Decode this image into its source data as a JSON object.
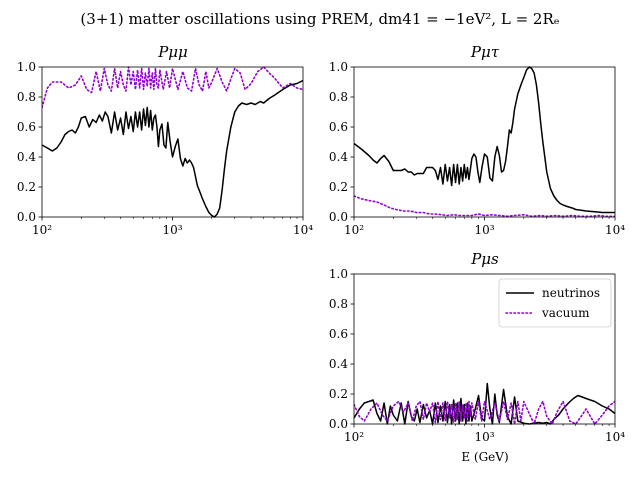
{
  "figure": {
    "title": "(3+1) matter oscillations using PREM, dm41 = −1eV², L = 2Rₑ"
  },
  "chart_data": [
    {
      "type": "line",
      "title": "Pμμ",
      "xlabel": "",
      "ylabel": "",
      "xscale": "log",
      "xlim": [
        100,
        10000
      ],
      "ylim": [
        0,
        1
      ],
      "xticks": [
        "10²",
        "10³",
        "10⁴"
      ],
      "yticks": [
        "0.0",
        "0.2",
        "0.4",
        "0.6",
        "0.8",
        "1.0"
      ],
      "series": [
        {
          "name": "neutrinos",
          "color": "#000000",
          "style": "solid",
          "x": [
            100,
            110,
            120,
            130,
            140,
            150,
            160,
            170,
            180,
            190,
            200,
            215,
            230,
            245,
            260,
            275,
            290,
            305,
            320,
            340,
            360,
            380,
            400,
            420,
            440,
            460,
            480,
            500,
            520,
            540,
            560,
            580,
            600,
            620,
            640,
            660,
            680,
            700,
            720,
            740,
            760,
            780,
            800,
            830,
            860,
            890,
            920,
            960,
            1000,
            1050,
            1100,
            1150,
            1200,
            1250,
            1300,
            1350,
            1400,
            1450,
            1500,
            1550,
            1600,
            1700,
            1800,
            1900,
            2000,
            2100,
            2200,
            2300,
            2400,
            2500,
            2600,
            2800,
            3000,
            3200,
            3400,
            3700,
            4000,
            4300,
            4700,
            5000,
            5500,
            6000,
            7000,
            8000,
            9000,
            10000
          ],
          "y": [
            0.48,
            0.46,
            0.44,
            0.46,
            0.5,
            0.55,
            0.57,
            0.58,
            0.56,
            0.6,
            0.66,
            0.67,
            0.6,
            0.65,
            0.63,
            0.68,
            0.64,
            0.7,
            0.67,
            0.56,
            0.7,
            0.58,
            0.66,
            0.55,
            0.7,
            0.59,
            0.67,
            0.57,
            0.7,
            0.6,
            0.7,
            0.58,
            0.72,
            0.61,
            0.73,
            0.6,
            0.71,
            0.58,
            0.66,
            0.68,
            0.6,
            0.47,
            0.58,
            0.62,
            0.48,
            0.46,
            0.63,
            0.5,
            0.4,
            0.47,
            0.52,
            0.39,
            0.34,
            0.39,
            0.36,
            0.38,
            0.36,
            0.33,
            0.27,
            0.21,
            0.18,
            0.12,
            0.07,
            0.03,
            0.01,
            0.0,
            0.02,
            0.06,
            0.18,
            0.32,
            0.44,
            0.6,
            0.7,
            0.74,
            0.76,
            0.75,
            0.76,
            0.75,
            0.77,
            0.76,
            0.79,
            0.81,
            0.85,
            0.88,
            0.89,
            0.91
          ]
        },
        {
          "name": "vacuum",
          "color": "#9400d3",
          "style": "dotted",
          "x": [
            100,
            110,
            120,
            140,
            160,
            180,
            200,
            220,
            240,
            260,
            280,
            300,
            320,
            340,
            360,
            380,
            400,
            420,
            440,
            460,
            480,
            500,
            520,
            540,
            560,
            580,
            600,
            620,
            640,
            660,
            680,
            700,
            720,
            740,
            760,
            780,
            800,
            850,
            900,
            950,
            1000,
            1100,
            1200,
            1300,
            1400,
            1500,
            1600,
            1700,
            1800,
            1900,
            2000,
            2200,
            2400,
            2600,
            2800,
            3000,
            3300,
            3600,
            4000,
            4500,
            5000,
            5500,
            6000,
            7000,
            8000,
            9000,
            10000
          ],
          "y": [
            0.73,
            0.86,
            0.9,
            0.9,
            0.86,
            0.88,
            0.94,
            0.85,
            0.83,
            0.97,
            0.84,
            0.99,
            0.88,
            0.84,
            0.99,
            0.86,
            0.97,
            0.88,
            0.84,
            1.0,
            0.88,
            0.97,
            0.85,
            0.98,
            0.86,
            0.99,
            0.85,
            0.96,
            0.87,
            0.99,
            0.86,
            0.96,
            0.85,
            0.99,
            0.88,
            0.86,
            0.98,
            0.85,
            0.97,
            0.86,
            0.99,
            0.85,
            0.97,
            0.86,
            0.84,
            0.99,
            0.88,
            0.84,
            0.97,
            0.86,
            0.9,
            0.99,
            0.9,
            0.84,
            0.92,
            0.99,
            0.96,
            0.85,
            0.89,
            0.97,
            1.0,
            0.96,
            0.93,
            0.86,
            0.89,
            0.86,
            0.85
          ]
        }
      ]
    },
    {
      "type": "line",
      "title": "Pμτ",
      "xlabel": "",
      "ylabel": "",
      "xscale": "log",
      "xlim": [
        100,
        10000
      ],
      "ylim": [
        0,
        1
      ],
      "xticks": [
        "10²",
        "10³",
        "10⁴"
      ],
      "yticks": [
        "0.0",
        "0.2",
        "0.4",
        "0.6",
        "0.8",
        "1.0"
      ],
      "series": [
        {
          "name": "neutrinos",
          "color": "#000000",
          "style": "solid",
          "x": [
            100,
            115,
            130,
            140,
            150,
            160,
            170,
            185,
            200,
            215,
            230,
            245,
            260,
            275,
            290,
            305,
            320,
            340,
            360,
            380,
            400,
            420,
            440,
            460,
            480,
            500,
            520,
            540,
            560,
            580,
            600,
            620,
            640,
            660,
            680,
            700,
            720,
            740,
            760,
            780,
            800,
            830,
            860,
            890,
            920,
            960,
            1000,
            1050,
            1100,
            1150,
            1200,
            1250,
            1300,
            1350,
            1400,
            1450,
            1500,
            1550,
            1600,
            1650,
            1700,
            1800,
            1900,
            2000,
            2100,
            2200,
            2300,
            2400,
            2500,
            2600,
            2700,
            2800,
            3000,
            3200,
            3400,
            3600,
            3800,
            4000,
            4300,
            4700,
            5000,
            5500,
            6000,
            7000,
            8000,
            9000,
            10000
          ],
          "y": [
            0.49,
            0.45,
            0.41,
            0.38,
            0.36,
            0.39,
            0.41,
            0.37,
            0.31,
            0.31,
            0.31,
            0.32,
            0.3,
            0.3,
            0.28,
            0.29,
            0.29,
            0.29,
            0.33,
            0.33,
            0.33,
            0.31,
            0.25,
            0.33,
            0.22,
            0.35,
            0.24,
            0.33,
            0.21,
            0.35,
            0.23,
            0.35,
            0.22,
            0.33,
            0.24,
            0.35,
            0.26,
            0.33,
            0.25,
            0.32,
            0.39,
            0.42,
            0.4,
            0.3,
            0.23,
            0.34,
            0.42,
            0.4,
            0.26,
            0.24,
            0.4,
            0.47,
            0.41,
            0.3,
            0.31,
            0.37,
            0.47,
            0.58,
            0.56,
            0.63,
            0.72,
            0.82,
            0.88,
            0.93,
            0.98,
            1.0,
            0.99,
            0.96,
            0.88,
            0.76,
            0.62,
            0.5,
            0.3,
            0.19,
            0.14,
            0.11,
            0.09,
            0.08,
            0.07,
            0.06,
            0.05,
            0.045,
            0.04,
            0.035,
            0.03,
            0.03,
            0.03
          ]
        },
        {
          "name": "vacuum",
          "color": "#9400d3",
          "style": "dotted",
          "x": [
            100,
            115,
            130,
            150,
            170,
            190,
            210,
            240,
            270,
            300,
            340,
            380,
            420,
            470,
            520,
            580,
            650,
            720,
            800,
            900,
            1000,
            1150,
            1300,
            1500,
            1700,
            2000,
            2300,
            2700,
            3000,
            3500,
            4000,
            4700,
            5500,
            6500,
            7500,
            8500,
            10000
          ],
          "y": [
            0.14,
            0.12,
            0.11,
            0.1,
            0.08,
            0.06,
            0.05,
            0.04,
            0.04,
            0.03,
            0.03,
            0.02,
            0.02,
            0.015,
            0.01,
            0.015,
            0.01,
            0.01,
            0.01,
            0.02,
            0.01,
            0.015,
            0.01,
            0.005,
            0.01,
            0.015,
            0.005,
            0.01,
            0.005,
            0.01,
            0.005,
            0.01,
            0.005,
            0.005,
            0.01,
            0.005,
            0.005
          ]
        }
      ]
    },
    {
      "type": "line",
      "title": "Pμs",
      "xlabel": "E (GeV)",
      "ylabel": "",
      "xscale": "log",
      "xlim": [
        100,
        10000
      ],
      "ylim": [
        0,
        1
      ],
      "xticks": [
        "10²",
        "10³",
        "10⁴"
      ],
      "yticks": [
        "0.0",
        "0.2",
        "0.4",
        "0.6",
        "0.8",
        "1.0"
      ],
      "legend": "top-right",
      "series": [
        {
          "name": "neutrinos",
          "color": "#000000",
          "style": "solid",
          "x": [
            100,
            110,
            120,
            130,
            140,
            150,
            160,
            170,
            180,
            190,
            200,
            215,
            230,
            245,
            260,
            275,
            290,
            305,
            320,
            340,
            360,
            380,
            400,
            420,
            440,
            460,
            480,
            500,
            520,
            540,
            560,
            580,
            600,
            620,
            640,
            660,
            680,
            700,
            720,
            740,
            760,
            780,
            800,
            850,
            900,
            950,
            1000,
            1050,
            1100,
            1150,
            1200,
            1250,
            1300,
            1400,
            1500,
            1600,
            1700,
            1800,
            2000,
            2200,
            2400,
            2600,
            2800,
            3000,
            3200,
            3400,
            3700,
            4000,
            4400,
            4800,
            5200,
            5600,
            6000,
            7000,
            8000,
            9000,
            10000
          ],
          "y": [
            0.04,
            0.1,
            0.14,
            0.15,
            0.16,
            0.07,
            0.02,
            0.14,
            0.0,
            0.12,
            0.06,
            0.02,
            0.14,
            0.0,
            0.15,
            0.05,
            0.02,
            0.1,
            0.01,
            0.13,
            0.04,
            0.09,
            0.0,
            0.14,
            0.01,
            0.12,
            0.02,
            0.15,
            0.01,
            0.13,
            0.0,
            0.16,
            0.02,
            0.14,
            0.0,
            0.17,
            0.02,
            0.13,
            0.0,
            0.14,
            0.02,
            0.12,
            0.02,
            0.1,
            0.19,
            0.04,
            0.02,
            0.27,
            0.1,
            0.0,
            0.2,
            0.06,
            0.01,
            0.23,
            0.05,
            0.0,
            0.18,
            0.02,
            0.005,
            0.0,
            0.005,
            0.01,
            0.005,
            0.01,
            0.0,
            0.03,
            0.06,
            0.1,
            0.14,
            0.17,
            0.19,
            0.18,
            0.17,
            0.15,
            0.12,
            0.1,
            0.07
          ]
        },
        {
          "name": "vacuum",
          "color": "#9400d3",
          "style": "dotted",
          "x": [
            100,
            110,
            120,
            135,
            150,
            165,
            180,
            200,
            220,
            240,
            260,
            280,
            300,
            320,
            340,
            360,
            380,
            400,
            420,
            440,
            460,
            480,
            500,
            520,
            540,
            560,
            580,
            600,
            620,
            640,
            660,
            680,
            700,
            720,
            740,
            760,
            780,
            800,
            850,
            900,
            950,
            1000,
            1100,
            1200,
            1300,
            1400,
            1500,
            1600,
            1700,
            1800,
            1900,
            2000,
            2200,
            2400,
            2600,
            2800,
            3000,
            3300,
            3600,
            4000,
            4500,
            5000,
            5500,
            6000,
            7000,
            8000,
            9000,
            10000
          ],
          "y": [
            0.13,
            0.05,
            0.02,
            0.1,
            0.14,
            0.06,
            0.02,
            0.12,
            0.15,
            0.08,
            0.14,
            0.02,
            0.12,
            0.15,
            0.03,
            0.14,
            0.08,
            0.14,
            0.01,
            0.15,
            0.03,
            0.14,
            0.02,
            0.15,
            0.04,
            0.13,
            0.01,
            0.14,
            0.03,
            0.15,
            0.02,
            0.13,
            0.04,
            0.14,
            0.02,
            0.15,
            0.05,
            0.14,
            0.03,
            0.15,
            0.02,
            0.15,
            0.03,
            0.14,
            0.02,
            0.15,
            0.03,
            0.14,
            0.0,
            0.15,
            0.02,
            0.15,
            0.07,
            0.0,
            0.1,
            0.15,
            0.05,
            0.0,
            0.08,
            0.15,
            0.02,
            0.0,
            0.05,
            0.1,
            0.0,
            0.06,
            0.12,
            0.15
          ]
        }
      ]
    }
  ]
}
